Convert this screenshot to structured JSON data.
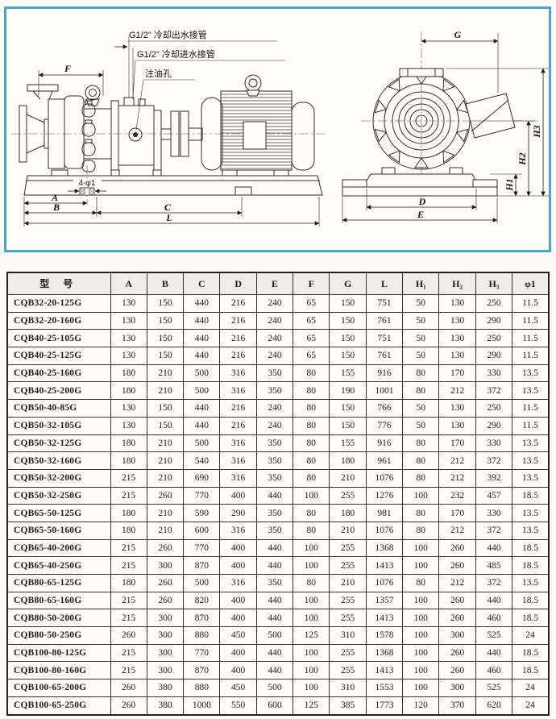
{
  "drawing": {
    "border_color": "#46a5d7",
    "annotations": {
      "cooling_outlet": "G1/2\" 冷却出水接管",
      "cooling_inlet": "G1/2\" 冷却进水接管",
      "oil_fill_hole": "注油孔",
      "base_hole": "4-φ1"
    },
    "dims": {
      "F": "F",
      "A": "A",
      "B": "B",
      "C": "C",
      "L": "L",
      "G": "G",
      "D": "D",
      "E": "E",
      "H1": "H1",
      "H2": "H2",
      "H3": "H3"
    }
  },
  "table": {
    "headers": [
      "型 号",
      "A",
      "B",
      "C",
      "D",
      "E",
      "F",
      "G",
      "L",
      "H₁",
      "H₂",
      "H₃",
      "φ1"
    ],
    "rows": [
      {
        "model": "CQB32-20-125G",
        "values": [
          "130",
          "150",
          "440",
          "216",
          "240",
          "65",
          "150",
          "751",
          "50",
          "130",
          "250",
          "11.5"
        ]
      },
      {
        "model": "CQB32-20-160G",
        "values": [
          "130",
          "150",
          "440",
          "216",
          "240",
          "65",
          "150",
          "761",
          "50",
          "130",
          "290",
          "11.5"
        ]
      },
      {
        "model": "CQB40-25-105G",
        "values": [
          "130",
          "150",
          "440",
          "216",
          "240",
          "65",
          "150",
          "751",
          "50",
          "130",
          "250",
          "11.5"
        ]
      },
      {
        "model": "CQB40-25-125G",
        "values": [
          "130",
          "150",
          "440",
          "216",
          "240",
          "65",
          "150",
          "761",
          "50",
          "130",
          "290",
          "11.5"
        ]
      },
      {
        "model": "CQB40-25-160G",
        "values": [
          "180",
          "210",
          "500",
          "316",
          "350",
          "80",
          "155",
          "916",
          "80",
          "170",
          "330",
          "13.5"
        ]
      },
      {
        "model": "CQB40-25-200G",
        "values": [
          "180",
          "210",
          "500",
          "316",
          "350",
          "80",
          "190",
          "1001",
          "80",
          "212",
          "372",
          "13.5"
        ]
      },
      {
        "model": "CQB50-40-85G",
        "values": [
          "130",
          "150",
          "440",
          "216",
          "240",
          "80",
          "150",
          "766",
          "50",
          "130",
          "250",
          "11.5"
        ]
      },
      {
        "model": "CQB50-32-105G",
        "values": [
          "130",
          "150",
          "440",
          "216",
          "240",
          "80",
          "150",
          "776",
          "50",
          "130",
          "290",
          "11.5"
        ]
      },
      {
        "model": "CQB50-32-125G",
        "values": [
          "180",
          "210",
          "500",
          "316",
          "350",
          "80",
          "155",
          "916",
          "80",
          "170",
          "330",
          "13.5"
        ]
      },
      {
        "model": "CQB50-32-160G",
        "values": [
          "180",
          "210",
          "540",
          "316",
          "350",
          "80",
          "180",
          "961",
          "80",
          "212",
          "372",
          "13.5"
        ]
      },
      {
        "model": "CQB50-32-200G",
        "values": [
          "215",
          "210",
          "690",
          "316",
          "350",
          "80",
          "210",
          "1076",
          "80",
          "212",
          "392",
          "13.5"
        ]
      },
      {
        "model": "CQB50-32-250G",
        "values": [
          "215",
          "260",
          "770",
          "400",
          "440",
          "100",
          "255",
          "1276",
          "100",
          "232",
          "457",
          "18.5"
        ]
      },
      {
        "model": "CQB65-50-125G",
        "values": [
          "180",
          "210",
          "590",
          "290",
          "350",
          "80",
          "180",
          "981",
          "80",
          "170",
          "330",
          "13.5"
        ]
      },
      {
        "model": "CQB65-50-160G",
        "values": [
          "180",
          "210",
          "600",
          "316",
          "350",
          "80",
          "210",
          "1076",
          "80",
          "212",
          "372",
          "13.5"
        ]
      },
      {
        "model": "CQB65-40-200G",
        "values": [
          "215",
          "260",
          "770",
          "400",
          "440",
          "100",
          "255",
          "1368",
          "100",
          "260",
          "440",
          "18.5"
        ]
      },
      {
        "model": "CQB65-40-250G",
        "values": [
          "215",
          "300",
          "870",
          "400",
          "440",
          "100",
          "255",
          "1413",
          "100",
          "260",
          "485",
          "18.5"
        ]
      },
      {
        "model": "CQB80-65-125G",
        "values": [
          "180",
          "260",
          "500",
          "316",
          "350",
          "80",
          "210",
          "1076",
          "80",
          "212",
          "372",
          "13.5"
        ]
      },
      {
        "model": "CQB80-65-160G",
        "values": [
          "215",
          "260",
          "820",
          "400",
          "440",
          "100",
          "255",
          "1357",
          "100",
          "260",
          "440",
          "18.5"
        ]
      },
      {
        "model": "CQB80-50-200G",
        "values": [
          "215",
          "300",
          "870",
          "400",
          "440",
          "100",
          "255",
          "1413",
          "100",
          "260",
          "460",
          "18.5"
        ]
      },
      {
        "model": "CQB80-50-250G",
        "values": [
          "260",
          "300",
          "880",
          "450",
          "500",
          "125",
          "310",
          "1578",
          "100",
          "300",
          "525",
          "24"
        ]
      },
      {
        "model": "CQB100-80-125G",
        "values": [
          "215",
          "300",
          "770",
          "400",
          "440",
          "100",
          "255",
          "1368",
          "100",
          "260",
          "440",
          "18.5"
        ]
      },
      {
        "model": "CQB100-80-160G",
        "values": [
          "215",
          "300",
          "870",
          "400",
          "440",
          "100",
          "255",
          "1413",
          "100",
          "260",
          "460",
          "18.5"
        ]
      },
      {
        "model": "CQB100-65-200G",
        "values": [
          "260",
          "380",
          "880",
          "450",
          "500",
          "100",
          "310",
          "1553",
          "100",
          "300",
          "525",
          "24"
        ]
      },
      {
        "model": "CQB100-65-250G",
        "values": [
          "260",
          "380",
          "1000",
          "550",
          "600",
          "125",
          "385",
          "1773",
          "120",
          "370",
          "620",
          "24"
        ]
      }
    ]
  }
}
